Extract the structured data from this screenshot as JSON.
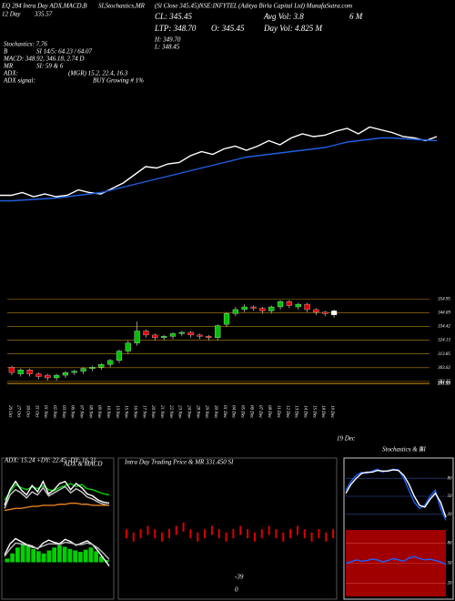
{
  "header": {
    "line1": "EQ 284 Intra Day ADX,MACD,B",
    "line2": "SI,Stochastics,MR",
    "line3": "(Sl Close 345.45)NSE:INFYTEL",
    "line4": "(Aditya Birla Capital Ltd) MunafaSutra.com",
    "day": "12 Day",
    "day_value": "335.57",
    "cl": "CL: 345.45",
    "ltp": "LTP: 348.70",
    "o": "O: 345.45",
    "h": "H: 349.70",
    "l": "L: 348.45",
    "avg_vol": "Avg Vol: 3.8",
    "avg_vol_unit": "6 M",
    "day_vol": "Day Vol: 4.825 M",
    "stoch": "Stochastics: 7.76",
    "b": "B",
    "si": "SI 14/5: 64.23 / 64.07",
    "macd": "MACD: 348.92, 346.18, 2.74 D",
    "mr": "MR",
    "mr_si": "SI: 59 & 6",
    "adx": "ADX:",
    "adx_values": "(MGR) 15.2, 22.4, 16.3",
    "adx_signal": "ADX signal:",
    "signal": "BUY Growing # 1%",
    "last_date": "19 Dec"
  },
  "chart_data": [
    {
      "type": "candlestick",
      "categories": [
        "26 Oct",
        "27 Oct",
        "30 Oct",
        "31 Oct",
        "01 Nov",
        "02 Nov",
        "03 Nov",
        "06 Nov",
        "07 Nov",
        "08 Nov",
        "09 Nov",
        "10 Nov",
        "13 Nov",
        "15 Nov",
        "16 Nov",
        "17 Nov",
        "20 Nov",
        "21 Nov",
        "22 Nov",
        "23 Nov",
        "24 Nov",
        "28 Nov",
        "29 Nov",
        "30 Nov",
        "01 Dec",
        "04 Dec",
        "05 Dec",
        "06 Dec",
        "07 Dec",
        "08 Dec",
        "11 Dec",
        "12 Dec",
        "13 Dec",
        "14 Dec",
        "15 Dec",
        "18 Dec",
        "19 Dec"
      ],
      "open": [
        304,
        299,
        302,
        299,
        298,
        296,
        298,
        300,
        301,
        303,
        304,
        306,
        309,
        316,
        322,
        331,
        328,
        326,
        327,
        329,
        330,
        328,
        327,
        326,
        336,
        344,
        347,
        349,
        348,
        346,
        349,
        353,
        349,
        351,
        347,
        345,
        346
      ],
      "high": [
        305,
        303,
        303,
        300,
        299,
        299,
        301,
        302,
        304,
        305,
        307,
        310,
        317,
        324,
        338,
        332,
        329,
        328,
        330,
        331,
        331,
        329,
        328,
        336,
        345,
        349,
        351,
        350,
        349,
        350,
        354,
        354,
        352,
        352,
        348,
        346,
        347
      ],
      "low": [
        298,
        297,
        297,
        295,
        294,
        294,
        296,
        298,
        299,
        301,
        302,
        304,
        307,
        314,
        320,
        326,
        324,
        324,
        325,
        327,
        326,
        325,
        324,
        324,
        334,
        342,
        345,
        346,
        344,
        344,
        347,
        348,
        347,
        345,
        343,
        342,
        341
      ],
      "close": [
        300,
        302,
        299,
        297,
        296,
        298,
        300,
        301,
        303,
        304,
        306,
        309,
        316,
        322,
        331,
        328,
        326,
        327,
        329,
        330,
        328,
        327,
        326,
        335,
        344,
        347,
        349,
        348,
        346,
        349,
        353,
        350,
        351,
        347,
        345,
        344,
        343
      ],
      "up_color": "#00c000",
      "down_color": "#e00000",
      "last_color": "#ffffff",
      "ylim": [
        279,
        366
      ],
      "yticks": [
        354.95,
        344.69,
        334.42,
        324.13,
        313.85,
        303.62,
        293.35,
        291.93,
        291.53
      ],
      "grid": true,
      "grid_color": "#b8860b"
    },
    {
      "type": "line",
      "ylim": [
        290,
        370
      ],
      "series": [
        {
          "color": "#ffffff",
          "values": [
            307,
            307,
            309,
            306,
            308,
            306,
            307,
            311,
            309,
            308,
            312,
            316,
            322,
            328,
            327,
            330,
            331,
            336,
            339,
            337,
            341,
            343,
            340,
            343,
            347,
            344,
            349,
            352,
            350,
            351,
            354,
            356,
            352,
            357,
            355,
            353,
            350,
            349,
            347,
            350
          ]
        },
        {
          "color": "#1f5fe0",
          "values": [
            303,
            303,
            303.5,
            304,
            304.5,
            305,
            306,
            307,
            308,
            309,
            311,
            313,
            315,
            317,
            319,
            321,
            323,
            325,
            327,
            329,
            331,
            333,
            335,
            336,
            337,
            338,
            339,
            340,
            341,
            342,
            344,
            346,
            347,
            348,
            349,
            349,
            348.5,
            348,
            347.5,
            347
          ]
        }
      ]
    },
    {
      "type": "line",
      "title": "ADX: 15.24 +DY: 22.45 -DY: 16.31",
      "label": "ADX  & MACD",
      "ylim": [
        0,
        50
      ],
      "series": [
        {
          "color": "#00d000",
          "values": [
            20,
            28,
            35,
            32,
            30,
            33,
            31,
            34,
            30,
            29,
            32,
            34,
            36,
            33,
            35,
            31,
            30,
            28,
            26,
            25
          ]
        },
        {
          "color": "#ffffff",
          "values": [
            15,
            30,
            38,
            30,
            25,
            34,
            28,
            38,
            26,
            30,
            36,
            38,
            30,
            36,
            32,
            26,
            24,
            20,
            18,
            17
          ]
        },
        {
          "color": "#cccccc",
          "values": [
            12,
            25,
            30,
            27,
            22,
            28,
            25,
            32,
            24,
            27,
            30,
            33,
            27,
            31,
            28,
            23,
            21,
            18,
            16,
            15
          ]
        },
        {
          "color": "#e08020",
          "values": [
            10,
            11,
            12,
            12,
            13,
            14,
            14,
            15,
            15,
            15,
            16,
            16,
            17,
            17,
            16,
            16,
            15,
            15,
            15,
            15
          ]
        }
      ]
    },
    {
      "type": "bar",
      "color": "#00d000",
      "ylim": [
        -4,
        4
      ],
      "values": [
        0.5,
        1.2,
        2.0,
        2.5,
        2.2,
        1.8,
        1.5,
        1.2,
        1.6,
        2.0,
        2.3,
        2.1,
        1.8,
        1.6,
        1.4,
        1.7,
        2.0,
        1.5,
        0.8,
        0.3
      ],
      "series": [
        {
          "color": "#ffffff",
          "values": [
            1,
            2.5,
            3.2,
            2.8,
            2.4,
            2.2,
            1.8,
            2.6,
            3.0,
            2.7,
            2.5,
            3.1,
            2.8,
            2.3,
            2.6,
            2.9,
            2.4,
            1.5,
            0.5,
            -0.5
          ]
        },
        {
          "color": "#bbbbbb",
          "values": [
            0.8,
            1.8,
            2.6,
            2.5,
            2.3,
            2.0,
            1.9,
            2.2,
            2.5,
            2.5,
            2.4,
            2.7,
            2.6,
            2.4,
            2.4,
            2.6,
            2.4,
            1.9,
            1.2,
            0.4
          ]
        }
      ]
    },
    {
      "type": "tick",
      "title": "Intra Day Trading Price  & MR  331.450 SI",
      "color": "#e00000",
      "ylim": [
        330,
        370
      ],
      "annotations": [
        "-39",
        "0"
      ],
      "values": [
        349,
        348,
        349,
        350,
        349,
        348,
        349,
        350,
        351,
        349,
        348,
        349,
        350,
        349,
        348,
        349,
        350,
        349,
        348,
        349,
        350,
        349,
        348,
        349,
        350,
        349,
        348,
        349,
        348,
        349
      ]
    },
    {
      "type": "line",
      "title": "Stochastics & R",
      "label": "SI",
      "ylim": [
        0,
        100
      ],
      "yticks": [
        80,
        50,
        20
      ],
      "grid": true,
      "grid_color": "#3050a0",
      "series": [
        {
          "color": "#2060ff",
          "values": [
            60,
            75,
            85,
            90,
            88,
            92,
            95,
            90,
            93,
            95,
            94,
            80,
            60,
            40,
            30,
            35,
            50,
            60,
            30,
            10
          ]
        },
        {
          "color": "#ffffff",
          "values": [
            55,
            70,
            80,
            88,
            90,
            90,
            93,
            92,
            92,
            94,
            93,
            85,
            70,
            50,
            35,
            32,
            45,
            55,
            40,
            15
          ]
        }
      ]
    },
    {
      "type": "line",
      "background": "#a00000",
      "ylim": [
        0,
        100
      ],
      "yticks": [
        80,
        50,
        20
      ],
      "grid": true,
      "grid_color": "#d04040",
      "series": [
        {
          "color": "#2060ff",
          "values": [
            50,
            52,
            55,
            53,
            54,
            56,
            55,
            52,
            54,
            57,
            55,
            53,
            58,
            60,
            57,
            55,
            56,
            54,
            52,
            48
          ]
        }
      ]
    }
  ]
}
